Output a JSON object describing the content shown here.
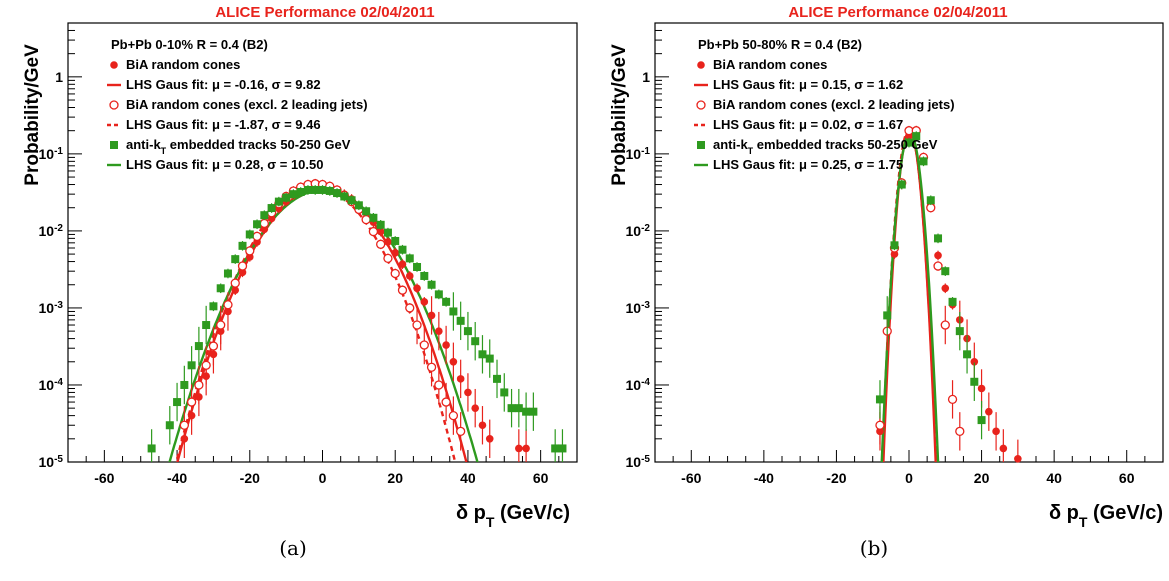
{
  "chart_data": [
    {
      "type": "scatter",
      "performance_label": "ALICE Performance 02/04/2011",
      "ylabel": "Probability/GeV",
      "xlabel": "δ p_T (GeV/c)",
      "caption": "(a)",
      "xlim": [
        -70,
        70
      ],
      "ylim": [
        1e-05,
        5
      ],
      "y_scale": "log",
      "x_ticks": [
        "-60",
        "-40",
        "-20",
        "0",
        "20",
        "40",
        "60"
      ],
      "y_ticks": [
        "1",
        "10^-1",
        "10^-2",
        "10^-3",
        "10^-4",
        "10^-5"
      ],
      "legend_header": "Pb+Pb  0-10% R = 0.4 (B2)",
      "legend": [
        {
          "marker": "filled-circle",
          "color": "#e8231c",
          "label": "BiA random cones"
        },
        {
          "marker": "solid-line",
          "color": "#e8231c",
          "label": "LHS Gaus fit: μ = -0.16, σ = 9.82"
        },
        {
          "marker": "open-circle",
          "color": "#e8231c",
          "label": "BiA random cones (excl. 2 leading jets)"
        },
        {
          "marker": "dotted-line",
          "color": "#e8231c",
          "label": "LHS Gaus fit: μ = -1.87, σ = 9.46"
        },
        {
          "marker": "filled-square",
          "color": "#2e9a1f",
          "label": "anti-k_T embedded tracks 50-250 GeV"
        },
        {
          "marker": "solid-line",
          "color": "#2e9a1f",
          "label": "LHS Gaus fit: μ = 0.28, σ = 10.50"
        }
      ],
      "fits": [
        {
          "mu": -0.16,
          "sigma": 9.82,
          "amp": 0.036,
          "color": "#e8231c",
          "style": "solid"
        },
        {
          "mu": -1.87,
          "sigma": 9.46,
          "amp": 0.037,
          "color": "#e8231c",
          "style": "dotted"
        },
        {
          "mu": 0.28,
          "sigma": 10.5,
          "amp": 0.034,
          "color": "#2e9a1f",
          "style": "solid"
        }
      ],
      "series": [
        {
          "name": "BiA random cones",
          "marker": "filled-circle",
          "color": "#e8231c",
          "x": [
            -38,
            -36,
            -34,
            -32,
            -30,
            -28,
            -26,
            -24,
            -22,
            -20,
            -18,
            -16,
            -14,
            -12,
            -10,
            -8,
            -6,
            -4,
            -2,
            0,
            2,
            4,
            6,
            8,
            10,
            12,
            14,
            16,
            18,
            20,
            22,
            24,
            26,
            28,
            30,
            32,
            34,
            36,
            38,
            40,
            42,
            44,
            46,
            54,
            56
          ],
          "y": [
            2e-05,
            4e-05,
            7e-05,
            0.00013,
            0.00025,
            0.0005,
            0.0009,
            0.0017,
            0.0029,
            0.0046,
            0.0072,
            0.0105,
            0.0145,
            0.0195,
            0.024,
            0.029,
            0.032,
            0.035,
            0.036,
            0.036,
            0.035,
            0.033,
            0.03,
            0.026,
            0.021,
            0.017,
            0.013,
            0.0098,
            0.0072,
            0.0052,
            0.0037,
            0.0026,
            0.0018,
            0.0012,
            0.0008,
            0.0005,
            0.00033,
            0.0002,
            0.00012,
            8e-05,
            5e-05,
            3e-05,
            2e-05,
            1.5e-05,
            1.5e-05
          ]
        },
        {
          "name": "BiA random cones (excl. 2 leading jets)",
          "marker": "open-circle",
          "color": "#e8231c",
          "x": [
            -38,
            -36,
            -34,
            -32,
            -30,
            -28,
            -26,
            -24,
            -22,
            -20,
            -18,
            -16,
            -14,
            -12,
            -10,
            -8,
            -6,
            -4,
            -2,
            0,
            2,
            4,
            6,
            8,
            10,
            12,
            14,
            16,
            18,
            20,
            22,
            24,
            26,
            28,
            30,
            32,
            34,
            36,
            38
          ],
          "y": [
            3e-05,
            6e-05,
            0.0001,
            0.00018,
            0.00032,
            0.0006,
            0.0011,
            0.0021,
            0.0035,
            0.0055,
            0.0085,
            0.0125,
            0.0172,
            0.0225,
            0.028,
            0.033,
            0.037,
            0.04,
            0.041,
            0.04,
            0.038,
            0.034,
            0.029,
            0.024,
            0.019,
            0.014,
            0.0098,
            0.0067,
            0.0044,
            0.0028,
            0.0017,
            0.001,
            0.0006,
            0.00033,
            0.00017,
            0.0001,
            6e-05,
            4e-05,
            2.5e-05
          ]
        },
        {
          "name": "anti-k_T embedded tracks 50-250 GeV",
          "marker": "filled-square",
          "color": "#2e9a1f",
          "x": [
            -47,
            -42,
            -40,
            -38,
            -36,
            -34,
            -32,
            -30,
            -28,
            -26,
            -24,
            -22,
            -20,
            -18,
            -16,
            -14,
            -12,
            -10,
            -8,
            -6,
            -4,
            -2,
            0,
            2,
            4,
            6,
            8,
            10,
            12,
            14,
            16,
            18,
            20,
            22,
            24,
            26,
            28,
            30,
            32,
            34,
            36,
            38,
            40,
            42,
            44,
            46,
            48,
            50,
            52,
            54,
            56,
            58,
            64,
            66
          ],
          "y": [
            1.5e-05,
            3e-05,
            6e-05,
            0.0001,
            0.00018,
            0.00032,
            0.0006,
            0.00105,
            0.0018,
            0.0028,
            0.0043,
            0.0064,
            0.009,
            0.0122,
            0.016,
            0.0198,
            0.024,
            0.027,
            0.03,
            0.032,
            0.034,
            0.034,
            0.034,
            0.033,
            0.031,
            0.028,
            0.025,
            0.0215,
            0.018,
            0.0148,
            0.012,
            0.0095,
            0.0074,
            0.0057,
            0.0044,
            0.0034,
            0.0026,
            0.002,
            0.0015,
            0.0012,
            0.0009,
            0.00068,
            0.0005,
            0.00037,
            0.00025,
            0.00022,
            0.00012,
            8e-05,
            5e-05,
            5e-05,
            4.5e-05,
            4.5e-05,
            1.5e-05,
            1.5e-05
          ]
        }
      ]
    },
    {
      "type": "scatter",
      "performance_label": "ALICE Performance 02/04/2011",
      "ylabel": "Probability/GeV",
      "xlabel": "δ p_T (GeV/c)",
      "caption": "(b)",
      "xlim": [
        -70,
        70
      ],
      "ylim": [
        1e-05,
        5
      ],
      "y_scale": "log",
      "x_ticks": [
        "-60",
        "-40",
        "-20",
        "0",
        "20",
        "40",
        "60"
      ],
      "y_ticks": [
        "1",
        "10^-1",
        "10^-2",
        "10^-3",
        "10^-4",
        "10^-5"
      ],
      "legend_header": "Pb+Pb 50-80% R = 0.4 (B2)",
      "legend": [
        {
          "marker": "filled-circle",
          "color": "#e8231c",
          "label": "BiA random cones"
        },
        {
          "marker": "solid-line",
          "color": "#e8231c",
          "label": "LHS Gaus fit: μ = 0.15, σ = 1.62"
        },
        {
          "marker": "open-circle",
          "color": "#e8231c",
          "label": "BiA random cones (excl. 2 leading jets)"
        },
        {
          "marker": "dotted-line",
          "color": "#e8231c",
          "label": "LHS Gaus fit: μ = 0.02, σ = 1.67"
        },
        {
          "marker": "filled-square",
          "color": "#2e9a1f",
          "label": "anti-k_T embedded tracks 50-250 GeV"
        },
        {
          "marker": "solid-line",
          "color": "#2e9a1f",
          "label": "LHS Gaus fit: μ = 0.25, σ = 1.75"
        }
      ],
      "fits": [
        {
          "mu": 0.15,
          "sigma": 1.62,
          "amp": 0.2,
          "color": "#e8231c",
          "style": "solid"
        },
        {
          "mu": 0.02,
          "sigma": 1.67,
          "amp": 0.21,
          "color": "#e8231c",
          "style": "dotted"
        },
        {
          "mu": 0.25,
          "sigma": 1.75,
          "amp": 0.19,
          "color": "#2e9a1f",
          "style": "solid"
        }
      ],
      "series": [
        {
          "name": "BiA random cones",
          "marker": "filled-circle",
          "color": "#e8231c",
          "x": [
            -8,
            -6,
            -4,
            -2,
            0,
            2,
            4,
            6,
            8,
            10,
            12,
            14,
            16,
            18,
            20,
            22,
            24,
            26,
            30
          ],
          "y": [
            2.5e-05,
            0.0005,
            0.005,
            0.04,
            0.17,
            0.2,
            0.09,
            0.022,
            0.0048,
            0.0018,
            0.0011,
            0.0007,
            0.0004,
            0.0002,
            9e-05,
            4.5e-05,
            2.5e-05,
            1.5e-05,
            1.1e-05
          ]
        },
        {
          "name": "BiA random cones (excl. 2 leading jets)",
          "marker": "open-circle",
          "color": "#e8231c",
          "x": [
            -8,
            -6,
            -4,
            -2,
            0,
            2,
            4,
            6,
            8,
            10,
            12,
            14
          ],
          "y": [
            3e-05,
            0.0005,
            0.006,
            0.042,
            0.2,
            0.2,
            0.09,
            0.02,
            0.0035,
            0.0006,
            6.5e-05,
            2.5e-05
          ]
        },
        {
          "name": "anti-k_T embedded tracks 50-250 GeV",
          "marker": "filled-square",
          "color": "#2e9a1f",
          "x": [
            -8,
            -6,
            -4,
            -2,
            0,
            2,
            4,
            6,
            8,
            10,
            12,
            14,
            16,
            18,
            20
          ],
          "y": [
            6.5e-05,
            0.0008,
            0.0065,
            0.04,
            0.14,
            0.17,
            0.08,
            0.025,
            0.008,
            0.003,
            0.0012,
            0.0005,
            0.00025,
            0.00011,
            3.5e-05
          ]
        }
      ]
    }
  ]
}
